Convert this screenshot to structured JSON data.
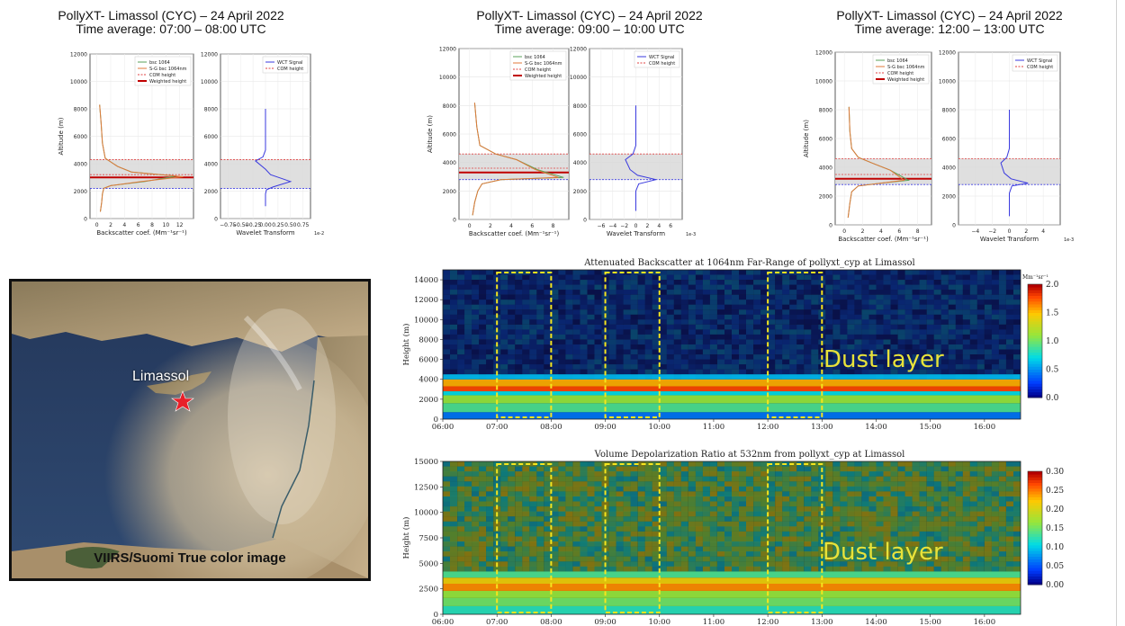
{
  "profile_titles": [
    {
      "line1": "PollyXT- Limassol (CYC) – 24 April 2022",
      "line2": "Time average: 07:00 – 08:00 UTC"
    },
    {
      "line1": "PollyXT- Limassol (CYC) – 24 April 2022",
      "line2": "Time average: 09:00 – 10:00 UTC"
    },
    {
      "line1": "PollyXT- Limassol (CYC) – 24 April 2022",
      "line2": "Time average: 12:00 – 13:00 UTC"
    }
  ],
  "map": {
    "place_label": "Limassol",
    "caption": "VIIRS/Suomi True color image",
    "marker_icon": "star-icon",
    "colors": {
      "sea": "#1d3350",
      "land": "#b7a27f",
      "dust": "#c9b79a",
      "marker": "#e8202a"
    }
  },
  "chart_data": [
    {
      "type": "line",
      "title": "",
      "xlabel": "Backscatter coef. (Mm⁻¹sr⁻¹)",
      "ylabel": "Altitude (m)",
      "xlim": [
        -1,
        14
      ],
      "ylim": [
        0,
        12000
      ],
      "xticks": [
        "0",
        "2",
        "4",
        "6",
        "8",
        "10",
        "12"
      ],
      "yticks": [
        "0",
        "2000",
        "4000",
        "6000",
        "8000",
        "10000",
        "12000"
      ],
      "legend": [
        "bsc 1064",
        "S-G bsc 1064nm",
        "COM height",
        "Weighted height"
      ],
      "legend_position": "top-right",
      "series": [
        {
          "name": "bsc 1064",
          "x": [
            0.5,
            0.7,
            0.8,
            1.0,
            2.0,
            7.0,
            11.5,
            5.0,
            3.0,
            1.2,
            0.8,
            0.6,
            0.4
          ],
          "y": [
            500,
            1200,
            1800,
            2200,
            2400,
            2700,
            3100,
            3400,
            3800,
            4400,
            5500,
            7000,
            8300
          ]
        },
        {
          "name": "S-G bsc 1064nm",
          "x": [
            0.5,
            0.7,
            0.8,
            1.0,
            2.0,
            6.5,
            12.5,
            5.0,
            3.0,
            1.2,
            0.8,
            0.6,
            0.4
          ],
          "y": [
            500,
            1200,
            1800,
            2200,
            2400,
            2700,
            3050,
            3400,
            3800,
            4400,
            5500,
            7000,
            8300
          ]
        }
      ],
      "com_height": 3200,
      "weighted_height": 3000,
      "layer_bottom": 2200,
      "layer_top": 4300
    },
    {
      "type": "line",
      "title": "",
      "xlabel": "Wavelet Transform",
      "xexponent": "1e-2",
      "ylabel": "",
      "xlim": [
        -0.9,
        0.9
      ],
      "ylim": [
        0,
        12000
      ],
      "xticks": [
        "−0.75",
        "−0.50",
        "−0.25",
        "0.00",
        "0.25",
        "0.50",
        "0.75"
      ],
      "yticks": [
        "0",
        "2000",
        "4000",
        "6000",
        "8000",
        "10000",
        "12000"
      ],
      "legend": [
        "WCT Signal",
        "COM height"
      ],
      "legend_position": "top-right",
      "series": [
        {
          "name": "WCT Signal",
          "x": [
            0,
            0,
            0.02,
            0.15,
            0.5,
            0.1,
            0.0,
            -0.2,
            -0.05,
            0.0,
            0.0
          ],
          "y": [
            900,
            1800,
            2100,
            2300,
            2700,
            3200,
            3600,
            4200,
            4500,
            5000,
            8000
          ]
        }
      ],
      "layer_bottom": 2200,
      "layer_top": 4300
    },
    {
      "type": "line",
      "title": "",
      "xlabel": "Backscatter coef. (Mm⁻¹sr⁻¹)",
      "ylabel": "Altitude (m)",
      "xlim": [
        -1,
        9.5
      ],
      "ylim": [
        0,
        12000
      ],
      "xticks": [
        "0",
        "2",
        "4",
        "6",
        "8"
      ],
      "yticks": [
        "0",
        "2000",
        "4000",
        "6000",
        "8000",
        "10000",
        "12000"
      ],
      "legend": [
        "bsc 1064",
        "S-G bsc 1064nm",
        "COM height",
        "Weighted height"
      ],
      "legend_position": "top-right",
      "series": [
        {
          "name": "bsc 1064",
          "x": [
            0.3,
            0.5,
            0.8,
            1.2,
            3.0,
            9.0,
            6.5,
            4.5,
            2.5,
            1.0,
            0.7,
            0.5
          ],
          "y": [
            300,
            1200,
            2000,
            2500,
            2800,
            2950,
            3500,
            4200,
            4600,
            5200,
            6500,
            8200
          ]
        },
        {
          "name": "S-G bsc 1064nm",
          "x": [
            0.3,
            0.5,
            0.8,
            1.2,
            3.0,
            8.5,
            6.3,
            4.5,
            2.5,
            1.0,
            0.7,
            0.5
          ],
          "y": [
            300,
            1200,
            2000,
            2500,
            2800,
            2950,
            3500,
            4200,
            4600,
            5200,
            6500,
            8200
          ]
        }
      ],
      "com_height": 3600,
      "weighted_height": 3300,
      "layer_bottom": 2800,
      "layer_top": 4600
    },
    {
      "type": "line",
      "title": "",
      "xlabel": "Wavelet Transform",
      "xexponent": "1e-3",
      "ylabel": "",
      "xlim": [
        -8,
        8
      ],
      "ylim": [
        0,
        12000
      ],
      "xticks": [
        "−6",
        "−4",
        "−2",
        "0",
        "2",
        "4",
        "6"
      ],
      "yticks": [
        "0",
        "2000",
        "4000",
        "6000",
        "8000",
        "10000",
        "12000"
      ],
      "legend": [
        "WCT Signal",
        "COM height"
      ],
      "legend_position": "top-right",
      "series": [
        {
          "name": "WCT Signal",
          "x": [
            0,
            0,
            0.5,
            3.5,
            0.3,
            -1.0,
            -1.8,
            -0.5,
            0.0,
            0.0
          ],
          "y": [
            600,
            2000,
            2500,
            2800,
            3100,
            3500,
            4200,
            4600,
            5200,
            8000
          ]
        }
      ],
      "layer_bottom": 2800,
      "layer_top": 4600
    },
    {
      "type": "line",
      "title": "",
      "xlabel": "Backscatter coef. (Mm⁻¹sr⁻¹)",
      "ylabel": "Altitude (m)",
      "xlim": [
        -1,
        9.5
      ],
      "ylim": [
        0,
        12000
      ],
      "xticks": [
        "0",
        "2",
        "4",
        "6",
        "8"
      ],
      "yticks": [
        "0",
        "2000",
        "4000",
        "6000",
        "8000",
        "10000",
        "12000"
      ],
      "legend": [
        "bsc 1064",
        "S-G bsc 1064nm",
        "COM height",
        "Weighted height"
      ],
      "legend_position": "top-right",
      "series": [
        {
          "name": "bsc 1064",
          "x": [
            0.4,
            0.6,
            0.8,
            1.5,
            4.0,
            7.0,
            5.0,
            3.0,
            1.5,
            0.8,
            0.6,
            0.5
          ],
          "y": [
            500,
            1500,
            2300,
            2700,
            2900,
            3100,
            3800,
            4300,
            4700,
            5300,
            6500,
            8200
          ]
        },
        {
          "name": "S-G bsc 1064nm",
          "x": [
            0.4,
            0.6,
            0.8,
            1.5,
            4.0,
            6.5,
            5.0,
            3.0,
            1.5,
            0.8,
            0.6,
            0.5
          ],
          "y": [
            500,
            1500,
            2300,
            2700,
            2900,
            3100,
            3800,
            4300,
            4700,
            5300,
            6500,
            8200
          ]
        }
      ],
      "com_height": 3500,
      "weighted_height": 3200,
      "layer_bottom": 2800,
      "layer_top": 4600
    },
    {
      "type": "line",
      "title": "",
      "xlabel": "Wavelet Transform",
      "xexponent": "1e-3",
      "ylabel": "",
      "xlim": [
        -6,
        6
      ],
      "ylim": [
        0,
        12000
      ],
      "xticks": [
        "−4",
        "−2",
        "0",
        "2",
        "4"
      ],
      "yticks": [
        "0",
        "2000",
        "4000",
        "6000",
        "8000",
        "10000",
        "12000"
      ],
      "legend": [
        "WCT Signal",
        "COM height"
      ],
      "legend_position": "top-right",
      "series": [
        {
          "name": "WCT Signal",
          "x": [
            0,
            0,
            0.3,
            2.2,
            0.2,
            -0.6,
            -1.0,
            -0.3,
            0.0,
            0.0
          ],
          "y": [
            600,
            2200,
            2700,
            2900,
            3200,
            3600,
            4300,
            4700,
            5300,
            8000
          ]
        }
      ],
      "layer_bottom": 2800,
      "layer_top": 4600
    },
    {
      "type": "heatmap",
      "title": "Attenuated Backscatter at 1064nm Far-Range of pollyxt_cyp at Limassol",
      "xlabel": "",
      "ylabel": "Height (m)",
      "xticks": [
        "06:00",
        "07:00",
        "08:00",
        "09:00",
        "10:00",
        "11:00",
        "12:00",
        "13:00",
        "14:00",
        "15:00",
        "16:00"
      ],
      "yticks": [
        "0",
        "2000",
        "4000",
        "6000",
        "8000",
        "10000",
        "12000",
        "14000"
      ],
      "xlim": [
        "06:00",
        "16:40"
      ],
      "ylim": [
        0,
        15000
      ],
      "colorbar_label": "Mm⁻¹sr⁻¹",
      "colorbar_ticks": [
        "0.0",
        "0.5",
        "1.0",
        "1.5",
        "2.0"
      ],
      "colorbar_range": [
        0,
        2.0
      ],
      "annotation": "Dust layer",
      "highlight_windows": [
        [
          "07:00",
          "08:00"
        ],
        [
          "09:00",
          "10:00"
        ],
        [
          "12:00",
          "13:00"
        ]
      ],
      "dust_layer_top": 4000,
      "bright_band": [
        2800,
        4000
      ]
    },
    {
      "type": "heatmap",
      "title": "Volume Depolarization Ratio at 532nm from pollyxt_cyp at Limassol",
      "xlabel": "",
      "ylabel": "Height (m)",
      "xticks": [
        "06:00",
        "07:00",
        "08:00",
        "09:00",
        "10:00",
        "11:00",
        "12:00",
        "13:00",
        "14:00",
        "15:00",
        "16:00"
      ],
      "yticks": [
        "0",
        "2500",
        "5000",
        "7500",
        "10000",
        "12500",
        "15000"
      ],
      "xlim": [
        "06:00",
        "16:40"
      ],
      "ylim": [
        0,
        15000
      ],
      "colorbar_ticks": [
        "0.00",
        "0.05",
        "0.10",
        "0.15",
        "0.20",
        "0.25",
        "0.30"
      ],
      "colorbar_range": [
        0,
        0.3
      ],
      "annotation": "Dust layer",
      "highlight_windows": [
        [
          "07:00",
          "08:00"
        ],
        [
          "09:00",
          "10:00"
        ],
        [
          "12:00",
          "13:00"
        ]
      ],
      "dust_layer_top": 4200,
      "bright_band": [
        2300,
        3500
      ]
    }
  ],
  "colors": {
    "bsc": "#5aa05a",
    "sg": "#e07a3a",
    "com": "#e04040",
    "weighted": "#c00000",
    "wct": "#3a3adf",
    "layer_fill": "#d9d9d9",
    "highlight": "#f5e51e",
    "annotation": "#e8e23a"
  }
}
